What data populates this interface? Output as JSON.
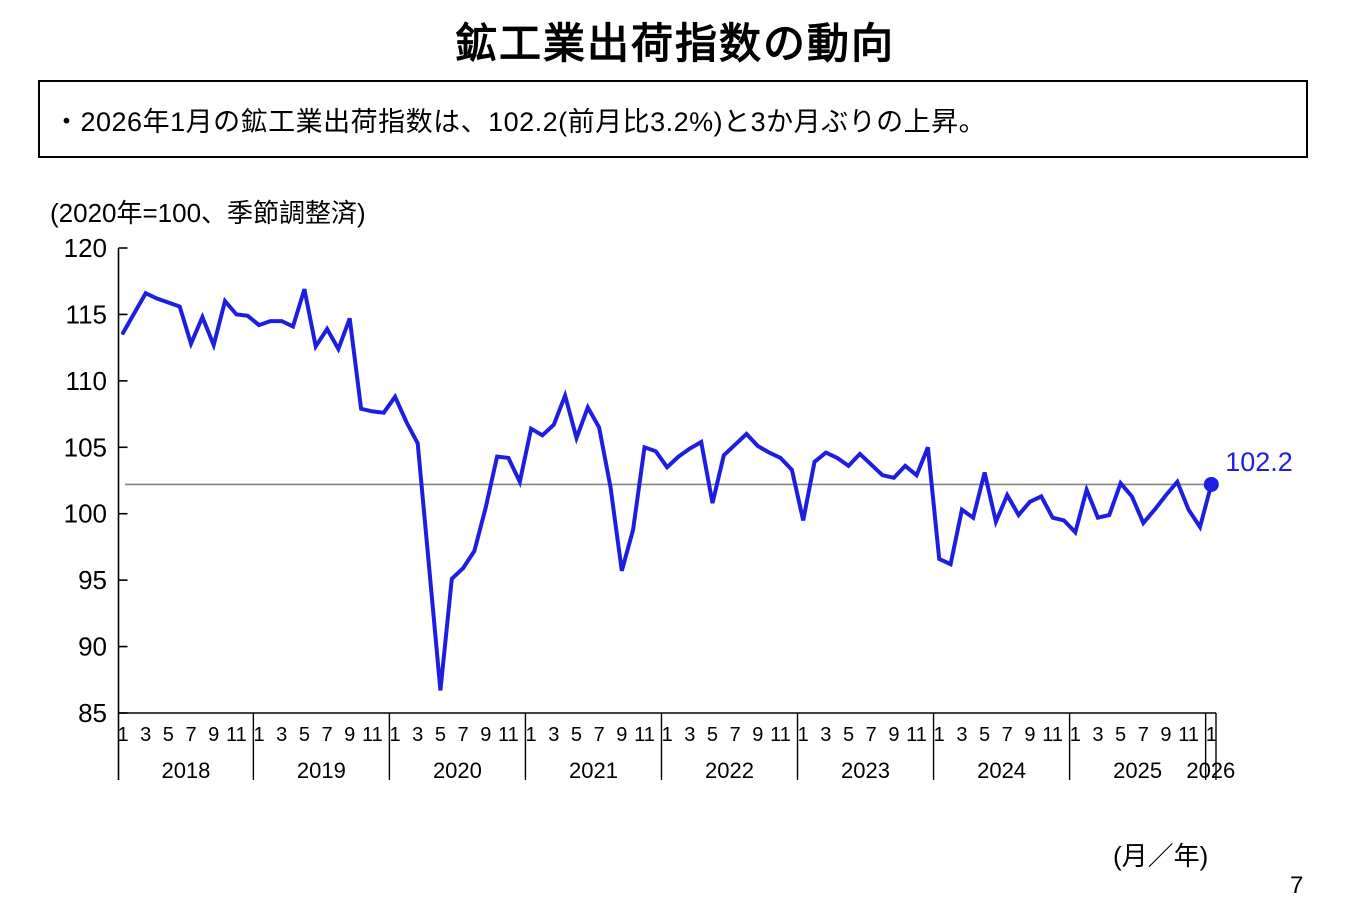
{
  "page": {
    "title": "鉱工業出荷指数の動向",
    "page_number": "7"
  },
  "summary_box": {
    "text": "・2026年1月の鉱工業出荷指数は、102.2(前月比3.2%)と3か月ぶりの上昇。"
  },
  "chart": {
    "axis_note": "(2020年=100、季節調整済)",
    "x_axis_unit_label": "(月／年)",
    "end_value_label": "102.2",
    "colors": {
      "line": "#1e1ee0",
      "reference_line": "#858585",
      "axis": "#000000",
      "label_text": "#000000"
    }
  },
  "chart_data": {
    "type": "line",
    "title": "鉱工業出荷指数の動向",
    "ylabel": "(2020年=100、季節調整済)",
    "xlabel": "(月／年)",
    "ylim": [
      85,
      120
    ],
    "yticks": [
      120,
      115,
      110,
      105,
      100,
      95,
      90,
      85
    ],
    "grid": false,
    "x_start": "2018-01",
    "x_end": "2026-01",
    "years": [
      "2018",
      "2019",
      "2020",
      "2021",
      "2022",
      "2023",
      "2024",
      "2025",
      "2026"
    ],
    "month_axis_labels": [
      "1",
      "3",
      "5",
      "7",
      "9",
      "11"
    ],
    "reference_line_value": 102.2,
    "last_point": {
      "month": "2026-01",
      "value": 102.2,
      "label": "102.2"
    },
    "series": [
      {
        "name": "鉱工業出荷指数(季節調整済)",
        "monthly_values": [
          113.6,
          115.1,
          116.6,
          116.2,
          115.9,
          115.6,
          112.8,
          114.8,
          112.7,
          116.0,
          115.0,
          114.9,
          114.2,
          114.5,
          114.5,
          114.1,
          116.9,
          112.6,
          113.9,
          112.4,
          114.7,
          107.9,
          107.7,
          107.6,
          108.8,
          106.9,
          105.3,
          96.0,
          86.7,
          95.1,
          95.9,
          97.2,
          100.5,
          104.3,
          104.2,
          102.4,
          106.4,
          105.9,
          106.7,
          108.9,
          105.7,
          108.0,
          106.5,
          102.0,
          95.7,
          98.8,
          105.0,
          104.7,
          103.5,
          104.3,
          104.9,
          105.4,
          100.8,
          104.4,
          105.2,
          106.0,
          105.1,
          104.6,
          104.2,
          103.3,
          99.5,
          103.9,
          104.6,
          104.2,
          103.6,
          104.5,
          103.7,
          102.9,
          102.7,
          103.6,
          102.9,
          105.0,
          96.6,
          96.2,
          100.3,
          99.7,
          103.1,
          99.4,
          101.4,
          99.9,
          100.9,
          101.3,
          99.7,
          99.5,
          98.6,
          101.8,
          99.7,
          99.9,
          102.3,
          101.3,
          99.3,
          100.3,
          101.4,
          102.4,
          100.3,
          99.0,
          102.2
        ]
      }
    ]
  }
}
